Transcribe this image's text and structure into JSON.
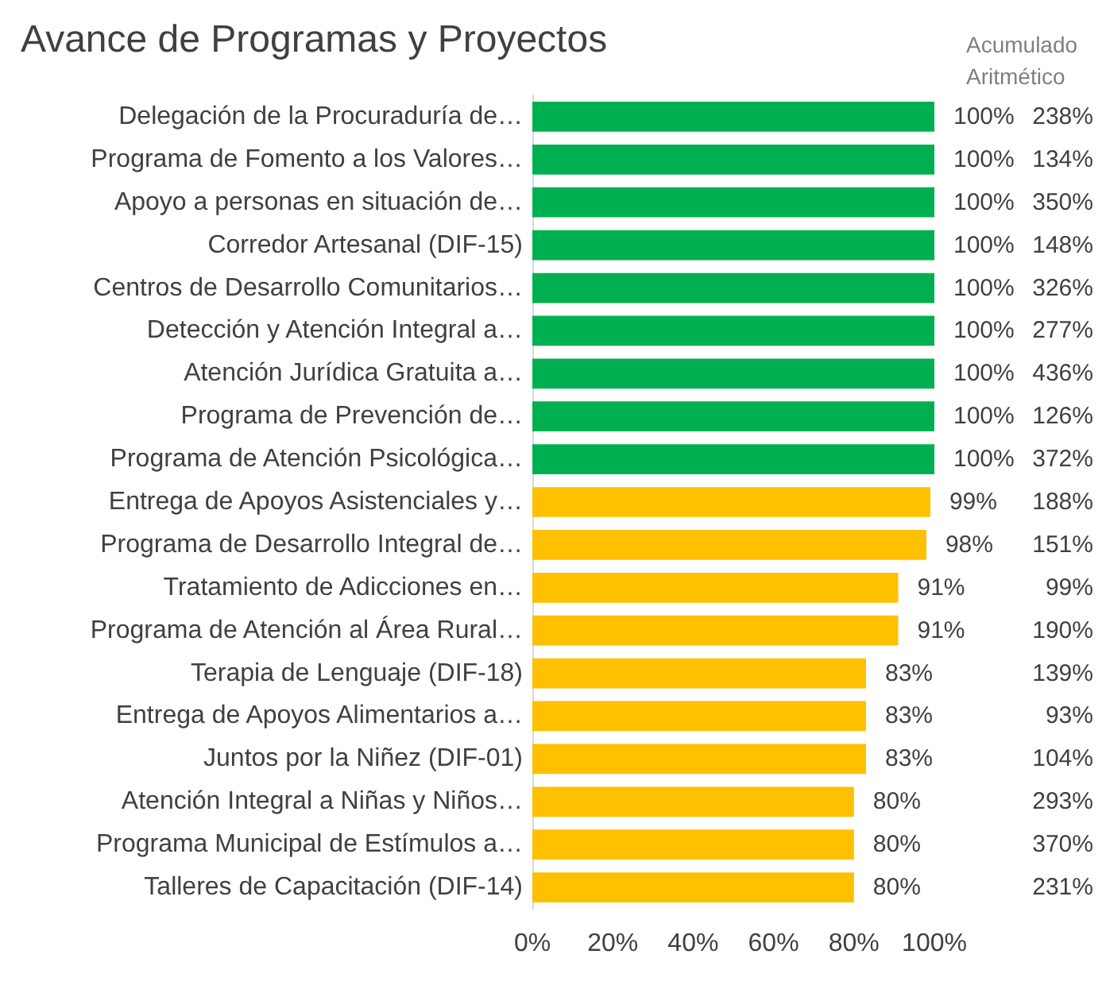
{
  "chart_data": {
    "type": "bar",
    "orientation": "horizontal",
    "title": "Avance de Programas y Proyectos",
    "categories": [
      "Delegación de la Procuraduría de…",
      "Programa de Fomento a los Valores…",
      "Apoyo a personas en situación de…",
      "Corredor Artesanal (DIF-15)",
      "Centros de Desarrollo Comunitarios…",
      "Detección y Atención Integral a…",
      "Atención Jurídica Gratuita a…",
      "Programa de Prevención de…",
      "Programa de Atención Psicológica…",
      "Entrega de Apoyos Asistenciales y…",
      "Programa de Desarrollo Integral de…",
      "Tratamiento de Adicciones en…",
      "Programa de Atención al Área Rural…",
      "Terapia de Lenguaje (DIF-18)",
      "Entrega de Apoyos Alimentarios a…",
      "Juntos por la Niñez (DIF-01)",
      "Atención Integral a Niñas y Niños…",
      "Programa Municipal de Estímulos a…",
      "Talleres de Capacitación (DIF-14)"
    ],
    "values": [
      100,
      100,
      100,
      100,
      100,
      100,
      100,
      100,
      100,
      99,
      98,
      91,
      91,
      83,
      83,
      83,
      80,
      80,
      80
    ],
    "value_labels": [
      "100%",
      "100%",
      "100%",
      "100%",
      "100%",
      "100%",
      "100%",
      "100%",
      "100%",
      "99%",
      "98%",
      "91%",
      "91%",
      "83%",
      "83%",
      "83%",
      "80%",
      "80%",
      "80%"
    ],
    "colors": [
      "#00b050",
      "#00b050",
      "#00b050",
      "#00b050",
      "#00b050",
      "#00b050",
      "#00b050",
      "#00b050",
      "#00b050",
      "#ffc000",
      "#ffc000",
      "#ffc000",
      "#ffc000",
      "#ffc000",
      "#ffc000",
      "#ffc000",
      "#ffc000",
      "#ffc000",
      "#ffc000"
    ],
    "xlim": [
      0,
      100
    ],
    "xticks": [
      {
        "value": 0,
        "label": "0%"
      },
      {
        "value": 20,
        "label": "20%"
      },
      {
        "value": 40,
        "label": "40%"
      },
      {
        "value": 60,
        "label": "60%"
      },
      {
        "value": 80,
        "label": "80%"
      },
      {
        "value": 100,
        "label": "100%"
      }
    ],
    "annotations": [
      "Acumulado Aritmético",
      "238%",
      "134%",
      "350%",
      "148%",
      "326%",
      "277%",
      "436%",
      "126%",
      "372%",
      "188%",
      "151%",
      "99%",
      "190%",
      "139%",
      "93%",
      "104%",
      "293%",
      "370%",
      "231%"
    ]
  }
}
